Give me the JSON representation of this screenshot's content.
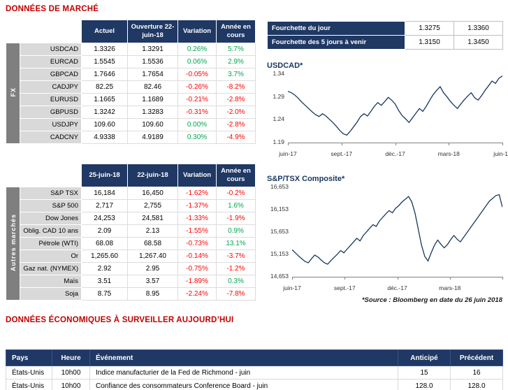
{
  "titles": {
    "market": "DONNÉES DE MARCHÉ",
    "econ": "DONNÉES ÉCONOMIQUES À SURVEILLER AUJOURD’HUI",
    "source": "*Source : Bloomberg en date du  26 juin 2018"
  },
  "colors": {
    "navy": "#1F3864",
    "title_red": "#C00000",
    "positive_green": "#00A651",
    "negative_red": "#FF0000",
    "band_gray": "#7F7F7F",
    "label_gray": "#D9D9D9",
    "chart_line": "#17375E"
  },
  "range_table": {
    "rows": [
      {
        "label": "Fourchette du jour",
        "low": "1.3275",
        "high": "1.3360"
      },
      {
        "label": "Fourchette des 5 jours à venir",
        "low": "1.3150",
        "high": "1.3450"
      }
    ]
  },
  "fx_table": {
    "band": "FX",
    "headers": [
      "Actuel",
      "Ouverture 22-juin-18",
      "Variation",
      "Année en cours"
    ],
    "rows": [
      {
        "label": "USDCAD",
        "actuel": "1.3326",
        "ouverture": "1.3291",
        "variation": "0.26%",
        "variation_cls": "pos",
        "ytd": "5.7%",
        "ytd_cls": "pos"
      },
      {
        "label": "EURCAD",
        "actuel": "1.5545",
        "ouverture": "1.5536",
        "variation": "0.06%",
        "variation_cls": "pos",
        "ytd": "2.9%",
        "ytd_cls": "pos"
      },
      {
        "label": "GBPCAD",
        "actuel": "1.7646",
        "ouverture": "1.7654",
        "variation": "-0.05%",
        "variation_cls": "neg",
        "ytd": "3.7%",
        "ytd_cls": "pos"
      },
      {
        "label": "CADJPY",
        "actuel": "82.25",
        "ouverture": "82.46",
        "variation": "-0.26%",
        "variation_cls": "neg",
        "ytd": "-8.2%",
        "ytd_cls": "neg"
      },
      {
        "label": "EURUSD",
        "actuel": "1.1665",
        "ouverture": "1.1689",
        "variation": "-0.21%",
        "variation_cls": "neg",
        "ytd": "-2.8%",
        "ytd_cls": "neg"
      },
      {
        "label": "GBPUSD",
        "actuel": "1.3242",
        "ouverture": "1.3283",
        "variation": "-0.31%",
        "variation_cls": "neg",
        "ytd": "-2.0%",
        "ytd_cls": "neg"
      },
      {
        "label": "USDJPY",
        "actuel": "109.60",
        "ouverture": "109.60",
        "variation": "0.00%",
        "variation_cls": "pos",
        "ytd": "-2.8%",
        "ytd_cls": "neg"
      },
      {
        "label": "CADCNY",
        "actuel": "4.9338",
        "ouverture": "4.9189",
        "variation": "0.30%",
        "variation_cls": "pos",
        "ytd": "-4.9%",
        "ytd_cls": "neg"
      }
    ]
  },
  "markets_table": {
    "band": "Autres marchés",
    "headers": [
      "25-juin-18",
      "22-juin-18",
      "Variation",
      "Année en cours"
    ],
    "rows": [
      {
        "label": "S&P TSX",
        "c1": "16,184",
        "c2": "16,450",
        "variation": "-1.62%",
        "variation_cls": "neg",
        "ytd": "-0.2%",
        "ytd_cls": "neg"
      },
      {
        "label": "S&P 500",
        "c1": "2,717",
        "c2": "2,755",
        "variation": "-1.37%",
        "variation_cls": "neg",
        "ytd": "1.6%",
        "ytd_cls": "pos"
      },
      {
        "label": "Dow Jones",
        "c1": "24,253",
        "c2": "24,581",
        "variation": "-1.33%",
        "variation_cls": "neg",
        "ytd": "-1.9%",
        "ytd_cls": "neg"
      },
      {
        "label": "Oblig. CAD 10 ans",
        "c1": "2.09",
        "c2": "2.13",
        "variation": "-1.55%",
        "variation_cls": "neg",
        "ytd": "0.9%",
        "ytd_cls": "pos"
      },
      {
        "label": "Pétrole (WTI)",
        "c1": "68.08",
        "c2": "68.58",
        "variation": "-0.73%",
        "variation_cls": "neg",
        "ytd": "13.1%",
        "ytd_cls": "pos"
      },
      {
        "label": "Or",
        "c1": "1,265.60",
        "c2": "1,267.40",
        "variation": "-0.14%",
        "variation_cls": "neg",
        "ytd": "-3.7%",
        "ytd_cls": "neg"
      },
      {
        "label": "Gaz nat. (NYMEX)",
        "c1": "2.92",
        "c2": "2.95",
        "variation": "-0.75%",
        "variation_cls": "neg",
        "ytd": "-1.2%",
        "ytd_cls": "neg"
      },
      {
        "label": "Maïs",
        "c1": "3.51",
        "c2": "3.57",
        "variation": "-1.89%",
        "variation_cls": "neg",
        "ytd": "0.3%",
        "ytd_cls": "pos"
      },
      {
        "label": "Soja",
        "c1": "8.75",
        "c2": "8.95",
        "variation": "-2.24%",
        "variation_cls": "neg",
        "ytd": "-7.8%",
        "ytd_cls": "neg"
      }
    ]
  },
  "econ_table": {
    "headers": [
      "Pays",
      "Heure",
      "Événement",
      "Anticipé",
      "Précédent"
    ],
    "rows": [
      {
        "pays": "États-Unis",
        "heure": "10h00",
        "evenement": "Indice manufacturier de la Fed de Richmond - juin",
        "anticipe": "15",
        "precedent": "16"
      },
      {
        "pays": "États-Unis",
        "heure": "10h00",
        "evenement": "Confiance des consommateurs Conference Board - juin",
        "anticipe": "128.0",
        "precedent": "128.0"
      }
    ]
  },
  "chart_data": [
    {
      "type": "line",
      "title": "USDCAD*",
      "ylim": [
        1.19,
        1.34
      ],
      "yticks": [
        "1.34",
        "1.29",
        "1.24",
        "1.19"
      ],
      "xticks": [
        "juin-17",
        "sept.-17",
        "déc.-17",
        "mars-18",
        "juin-18"
      ],
      "legend": "none",
      "grid": false,
      "line_color": "#17375E",
      "values": [
        1.3,
        1.297,
        1.292,
        1.285,
        1.277,
        1.27,
        1.263,
        1.256,
        1.25,
        1.246,
        1.252,
        1.247,
        1.24,
        1.233,
        1.225,
        1.216,
        1.209,
        1.206,
        1.214,
        1.224,
        1.234,
        1.246,
        1.252,
        1.247,
        1.257,
        1.268,
        1.276,
        1.27,
        1.278,
        1.287,
        1.281,
        1.273,
        1.259,
        1.248,
        1.241,
        1.233,
        1.243,
        1.253,
        1.263,
        1.257,
        1.268,
        1.281,
        1.293,
        1.302,
        1.31,
        1.297,
        1.288,
        1.278,
        1.27,
        1.263,
        1.273,
        1.282,
        1.29,
        1.297,
        1.286,
        1.281,
        1.291,
        1.302,
        1.312,
        1.322,
        1.317,
        1.328,
        1.333
      ]
    },
    {
      "type": "line",
      "title": "S&P/TSX Composite*",
      "ylim": [
        14653,
        16653
      ],
      "yticks": [
        "16,653",
        "16,153",
        "15,653",
        "15,153",
        "14,653"
      ],
      "xticks": [
        "juin-17",
        "sept.-17",
        "déc.-17",
        "mars-18"
      ],
      "legend": "none",
      "grid": false,
      "line_color": "#17375E",
      "values": [
        15250,
        15180,
        15110,
        15050,
        14990,
        14960,
        15050,
        15130,
        15090,
        15020,
        14960,
        14930,
        15010,
        15080,
        15150,
        15230,
        15180,
        15260,
        15340,
        15420,
        15500,
        15440,
        15560,
        15640,
        15720,
        15800,
        15760,
        15880,
        15960,
        16040,
        16110,
        16060,
        16160,
        16220,
        16300,
        16360,
        16420,
        16300,
        16050,
        15700,
        15350,
        15100,
        15000,
        15180,
        15350,
        15460,
        15370,
        15290,
        15360,
        15470,
        15560,
        15480,
        15420,
        15520,
        15620,
        15720,
        15820,
        15920,
        16020,
        16120,
        16220,
        16320,
        16380,
        16440,
        16460,
        16184
      ]
    }
  ]
}
